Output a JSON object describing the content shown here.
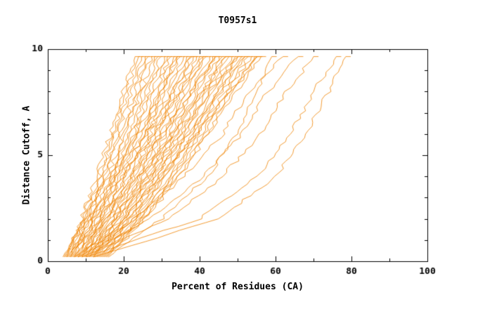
{
  "chart_data": {
    "type": "line",
    "title": "T0957s1",
    "xlabel": "Percent of Residues (CA)",
    "ylabel": "Distance Cutoff, A",
    "xlim": [
      0,
      100
    ],
    "ylim": [
      0,
      10
    ],
    "x_ticks_major": [
      0,
      20,
      40,
      60,
      80,
      100
    ],
    "x_ticks_minor": [
      10,
      30,
      50,
      70,
      90
    ],
    "y_ticks_major": [
      0,
      5,
      10
    ],
    "y_ticks_minor": [
      1,
      2,
      3,
      4,
      6,
      7,
      8,
      9
    ],
    "grid": false,
    "legend": "none",
    "bg_color": "#ffffff",
    "axis_color": "#000000",
    "series_color": "#f08300",
    "y_levels": [
      0.2,
      2,
      4,
      6,
      8,
      9.65
    ],
    "curves": [
      [
        4.0,
        8.8,
        12.9,
        16.5,
        20.0,
        23.0
      ],
      [
        4.3,
        9.2,
        13.5,
        17.2,
        20.7,
        23.9
      ],
      [
        4.6,
        9.6,
        14.0,
        17.9,
        21.5,
        24.7
      ],
      [
        4.9,
        10.1,
        14.6,
        18.5,
        22.2,
        25.6
      ],
      [
        5.2,
        10.5,
        15.2,
        19.2,
        23.0,
        26.4
      ],
      [
        5.5,
        10.9,
        15.7,
        19.9,
        23.8,
        27.3
      ],
      [
        5.8,
        11.4,
        16.3,
        20.5,
        24.5,
        28.1
      ],
      [
        6.1,
        11.8,
        16.8,
        21.2,
        25.3,
        29.0
      ],
      [
        6.4,
        12.3,
        17.4,
        21.8,
        26.1,
        29.8
      ],
      [
        6.7,
        12.7,
        18.0,
        22.5,
        26.8,
        30.7
      ],
      [
        7.0,
        13.1,
        18.5,
        23.2,
        27.6,
        31.5
      ],
      [
        7.3,
        13.6,
        19.1,
        23.8,
        28.3,
        32.4
      ],
      [
        7.6,
        14.0,
        19.6,
        24.5,
        29.1,
        33.2
      ],
      [
        7.9,
        14.4,
        20.2,
        25.2,
        29.9,
        34.1
      ],
      [
        8.2,
        14.9,
        20.7,
        25.8,
        30.6,
        34.9
      ],
      [
        8.5,
        15.3,
        21.3,
        26.5,
        31.4,
        35.8
      ],
      [
        8.8,
        15.8,
        21.9,
        27.1,
        32.2,
        36.6
      ],
      [
        9.1,
        16.2,
        22.4,
        27.8,
        32.9,
        37.5
      ],
      [
        9.4,
        16.6,
        23.0,
        28.5,
        33.7,
        38.3
      ],
      [
        9.7,
        17.1,
        23.5,
        29.1,
        34.4,
        39.2
      ],
      [
        10.0,
        17.5,
        24.1,
        29.8,
        35.2,
        40.0
      ],
      [
        10.3,
        17.9,
        24.7,
        30.5,
        36.0,
        40.9
      ],
      [
        10.6,
        18.4,
        25.2,
        31.1,
        36.7,
        41.7
      ],
      [
        10.9,
        18.8,
        25.8,
        31.8,
        37.5,
        42.6
      ],
      [
        11.2,
        19.3,
        26.3,
        32.5,
        38.2,
        43.4
      ],
      [
        11.5,
        19.7,
        26.9,
        33.1,
        39.0,
        44.3
      ],
      [
        11.8,
        20.1,
        27.5,
        33.8,
        39.8,
        45.1
      ],
      [
        12.1,
        20.6,
        28.0,
        34.4,
        40.5,
        46.0
      ],
      [
        12.4,
        21.0,
        28.6,
        35.1,
        41.3,
        46.8
      ],
      [
        12.7,
        21.4,
        29.1,
        35.8,
        42.1,
        47.7
      ],
      [
        13.0,
        21.9,
        29.7,
        36.4,
        42.8,
        48.5
      ],
      [
        13.3,
        22.3,
        30.2,
        37.1,
        43.6,
        49.4
      ],
      [
        13.6,
        22.8,
        30.8,
        37.8,
        44.3,
        50.2
      ],
      [
        13.9,
        23.2,
        31.4,
        38.4,
        45.1,
        51.1
      ],
      [
        14.2,
        23.6,
        31.9,
        39.1,
        45.9,
        51.9
      ],
      [
        14.5,
        24.1,
        32.5,
        39.7,
        46.6,
        52.8
      ],
      [
        14.8,
        24.5,
        33.0,
        40.4,
        47.4,
        53.6
      ],
      [
        15.1,
        24.9,
        33.6,
        41.1,
        48.2,
        54.5
      ],
      [
        15.4,
        25.4,
        34.2,
        41.7,
        48.9,
        55.3
      ],
      [
        15.7,
        25.8,
        34.7,
        42.4,
        49.7,
        56.2
      ],
      [
        5.0,
        9.0,
        16.0,
        24.0,
        30.0,
        34.0
      ],
      [
        6.0,
        11.0,
        18.0,
        26.0,
        33.0,
        38.0
      ],
      [
        7.0,
        12.0,
        20.0,
        28.0,
        35.0,
        41.0
      ],
      [
        8.0,
        14.0,
        22.0,
        30.0,
        38.0,
        44.0
      ],
      [
        9.0,
        15.0,
        24.0,
        33.0,
        41.0,
        47.0
      ],
      [
        10.0,
        17.0,
        26.0,
        35.0,
        43.0,
        50.0
      ],
      [
        11.0,
        18.0,
        28.0,
        37.0,
        45.0,
        52.0
      ],
      [
        12.0,
        20.0,
        30.0,
        39.0,
        48.0,
        55.0
      ],
      [
        12.0,
        45.0,
        60.0,
        68.0,
        74.0,
        78.5
      ],
      [
        10.0,
        40.0,
        55.0,
        64.0,
        70.0,
        76.0
      ],
      [
        9.0,
        32.0,
        46.0,
        56.0,
        63.0,
        70.0
      ],
      [
        8.0,
        27.0,
        41.0,
        51.0,
        58.0,
        66.0
      ],
      [
        7.0,
        23.0,
        36.0,
        46.0,
        53.0,
        62.0
      ],
      [
        16.0,
        30.0,
        42.0,
        50.0,
        55.0,
        59.0
      ]
    ]
  }
}
